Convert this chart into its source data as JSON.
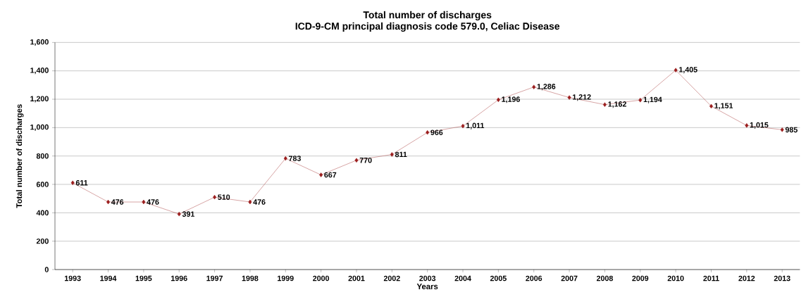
{
  "chart_data": {
    "type": "line",
    "title": "Total number of discharges",
    "subtitle": "ICD-9-CM principal diagnosis code 579.0, Celiac Disease",
    "xlabel": "Years",
    "ylabel": "Total number of discharges",
    "categories": [
      "1993",
      "1994",
      "1995",
      "1996",
      "1997",
      "1998",
      "1999",
      "2000",
      "2001",
      "2002",
      "2003",
      "2004",
      "2005",
      "2006",
      "2007",
      "2008",
      "2009",
      "2010",
      "2011",
      "2012",
      "2013"
    ],
    "series": [
      {
        "color": "#9b1c1c",
        "values": [
          611,
          476,
          476,
          391,
          510,
          476,
          783,
          667,
          770,
          811,
          966,
          1011,
          1196,
          1286,
          1212,
          1162,
          1194,
          1405,
          1151,
          1015,
          985
        ],
        "value_labels": [
          "611",
          "476",
          "476",
          "391",
          "510",
          "476",
          "783",
          "667",
          "770",
          "811",
          "966",
          "1,011",
          "1,196",
          "1,286",
          "1,212",
          "1,162",
          "1,194",
          "1,405",
          "1,151",
          "1,015",
          "985"
        ]
      }
    ],
    "ylim": [
      0,
      1600
    ],
    "yticks": [
      {
        "value": 0,
        "label": "0"
      },
      {
        "value": 200,
        "label": "200"
      },
      {
        "value": 400,
        "label": "400"
      },
      {
        "value": 600,
        "label": "600"
      },
      {
        "value": 800,
        "label": "800"
      },
      {
        "value": 1000,
        "label": "1,000"
      },
      {
        "value": 1200,
        "label": "1,200"
      },
      {
        "value": 1400,
        "label": "1,400"
      },
      {
        "value": 1600,
        "label": "1,600"
      }
    ],
    "grid": "y",
    "marker": "diamond",
    "line_style": "solid"
  }
}
